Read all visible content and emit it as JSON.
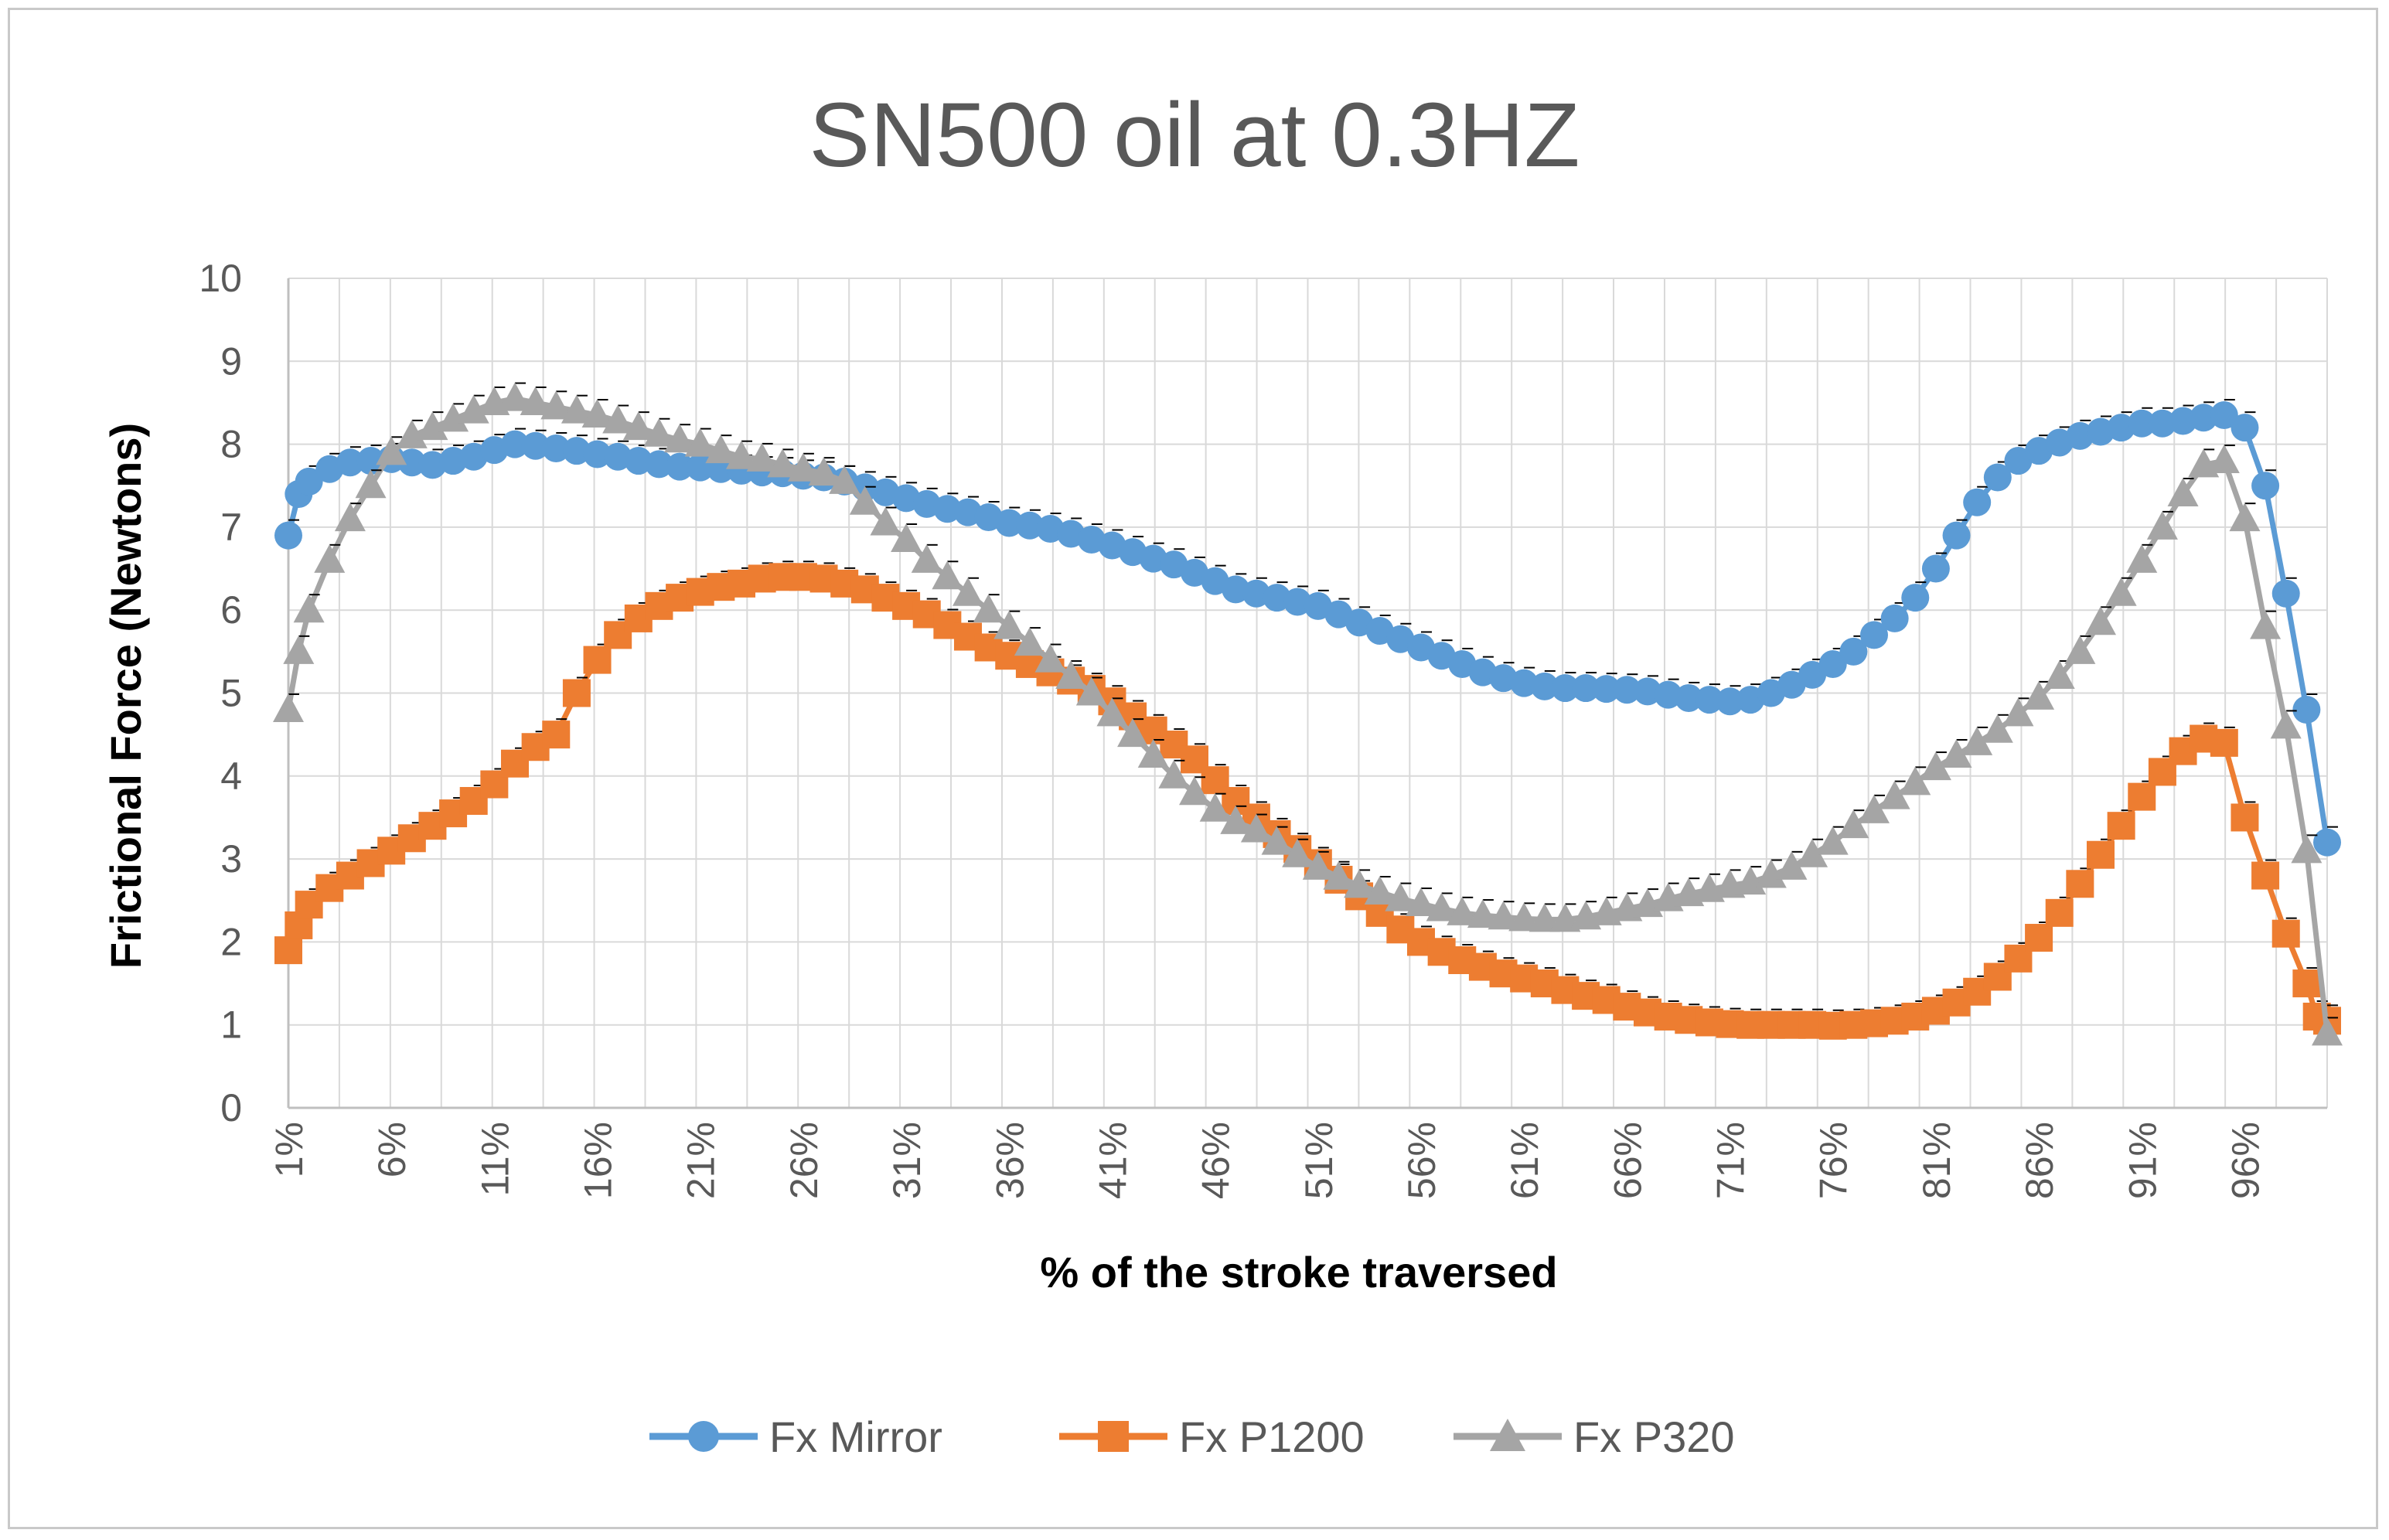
{
  "chart_data": {
    "type": "line",
    "title": "SN500 oil at 0.3HZ",
    "xlabel": "% of the stroke traversed",
    "ylabel": "Frictional Force (Newtons)",
    "ylim": [
      0,
      10
    ],
    "yticks": [
      "0",
      "1",
      "2",
      "3",
      "4",
      "5",
      "6",
      "7",
      "8",
      "9",
      "10"
    ],
    "xlim": [
      1,
      100
    ],
    "xticks": [
      "1%",
      "6%",
      "11%",
      "16%",
      "21%",
      "26%",
      "31%",
      "36%",
      "41%",
      "46%",
      "51%",
      "56%",
      "61%",
      "66%",
      "71%",
      "76%",
      "81%",
      "86%",
      "91%",
      "96%"
    ],
    "grid": true,
    "legend_position": "bottom",
    "series": [
      {
        "name": "Fx Mirror",
        "color": "#5b9bd5",
        "marker": "circle",
        "x": [
          1,
          1.5,
          2,
          3,
          4,
          5,
          6,
          7,
          8,
          9,
          10,
          11,
          12,
          13,
          14,
          15,
          16,
          17,
          18,
          19,
          20,
          21,
          22,
          23,
          24,
          25,
          26,
          27,
          28,
          29,
          30,
          31,
          32,
          33,
          34,
          35,
          36,
          37,
          38,
          39,
          40,
          41,
          42,
          43,
          44,
          45,
          46,
          47,
          48,
          49,
          50,
          51,
          52,
          53,
          54,
          55,
          56,
          57,
          58,
          59,
          60,
          61,
          62,
          63,
          64,
          65,
          66,
          67,
          68,
          69,
          70,
          71,
          72,
          73,
          74,
          75,
          76,
          77,
          78,
          79,
          80,
          81,
          82,
          83,
          84,
          85,
          86,
          87,
          88,
          89,
          90,
          91,
          92,
          93,
          94,
          95,
          96,
          97,
          98,
          99,
          100
        ],
        "values": [
          6.9,
          7.4,
          7.55,
          7.7,
          7.78,
          7.8,
          7.82,
          7.78,
          7.75,
          7.8,
          7.85,
          7.93,
          8.0,
          7.98,
          7.95,
          7.92,
          7.88,
          7.85,
          7.8,
          7.76,
          7.73,
          7.72,
          7.7,
          7.68,
          7.66,
          7.65,
          7.62,
          7.6,
          7.55,
          7.48,
          7.42,
          7.35,
          7.28,
          7.22,
          7.18,
          7.12,
          7.05,
          7.02,
          6.98,
          6.92,
          6.85,
          6.78,
          6.7,
          6.62,
          6.55,
          6.45,
          6.35,
          6.25,
          6.2,
          6.15,
          6.1,
          6.05,
          5.95,
          5.85,
          5.75,
          5.65,
          5.55,
          5.45,
          5.35,
          5.25,
          5.18,
          5.12,
          5.08,
          5.06,
          5.06,
          5.05,
          5.04,
          5.02,
          4.98,
          4.94,
          4.92,
          4.9,
          4.92,
          5.0,
          5.1,
          5.22,
          5.35,
          5.5,
          5.7,
          5.9,
          6.15,
          6.5,
          6.9,
          7.3,
          7.6,
          7.8,
          7.92,
          8.02,
          8.1,
          8.15,
          8.2,
          8.25,
          8.25,
          8.28,
          8.32,
          8.35,
          8.2,
          7.5,
          6.2,
          4.8,
          3.2
        ]
      },
      {
        "name": "Fx P1200",
        "color": "#ed7d31",
        "marker": "square",
        "x": [
          1,
          1.5,
          2,
          3,
          4,
          5,
          6,
          7,
          8,
          9,
          10,
          11,
          12,
          13,
          14,
          15,
          16,
          17,
          18,
          19,
          20,
          21,
          22,
          23,
          24,
          25,
          26,
          27,
          28,
          29,
          30,
          31,
          32,
          33,
          34,
          35,
          36,
          37,
          38,
          39,
          40,
          41,
          42,
          43,
          44,
          45,
          46,
          47,
          48,
          49,
          50,
          51,
          52,
          53,
          54,
          55,
          56,
          57,
          58,
          59,
          60,
          61,
          62,
          63,
          64,
          65,
          66,
          67,
          68,
          69,
          70,
          71,
          72,
          73,
          74,
          75,
          76,
          77,
          78,
          79,
          80,
          81,
          82,
          83,
          84,
          85,
          86,
          87,
          88,
          89,
          90,
          91,
          92,
          93,
          94,
          95,
          96,
          97,
          98,
          99,
          99.5,
          100
        ],
        "values": [
          1.9,
          2.2,
          2.45,
          2.65,
          2.8,
          2.95,
          3.1,
          3.25,
          3.4,
          3.55,
          3.7,
          3.9,
          4.15,
          4.35,
          4.5,
          5.0,
          5.4,
          5.7,
          5.9,
          6.05,
          6.15,
          6.22,
          6.28,
          6.32,
          6.38,
          6.4,
          6.4,
          6.38,
          6.32,
          6.25,
          6.15,
          6.05,
          5.95,
          5.82,
          5.68,
          5.55,
          5.45,
          5.35,
          5.25,
          5.15,
          5.05,
          4.9,
          4.72,
          4.55,
          4.38,
          4.2,
          3.95,
          3.7,
          3.5,
          3.3,
          3.12,
          2.95,
          2.75,
          2.55,
          2.35,
          2.15,
          2.0,
          1.88,
          1.78,
          1.7,
          1.62,
          1.56,
          1.5,
          1.42,
          1.35,
          1.3,
          1.22,
          1.15,
          1.1,
          1.06,
          1.03,
          1.01,
          1.0,
          1.0,
          1.0,
          1.0,
          0.99,
          1.0,
          1.02,
          1.05,
          1.1,
          1.17,
          1.27,
          1.4,
          1.58,
          1.8,
          2.05,
          2.35,
          2.7,
          3.05,
          3.4,
          3.75,
          4.05,
          4.3,
          4.45,
          4.4,
          3.5,
          2.8,
          2.1,
          1.5,
          1.1,
          1.05
        ]
      },
      {
        "name": "Fx P320",
        "color": "#a5a5a5",
        "marker": "triangle",
        "x": [
          1,
          1.5,
          2,
          3,
          4,
          5,
          6,
          7,
          8,
          9,
          10,
          11,
          12,
          13,
          14,
          15,
          16,
          17,
          18,
          19,
          20,
          21,
          22,
          23,
          24,
          25,
          26,
          27,
          28,
          29,
          30,
          31,
          32,
          33,
          34,
          35,
          36,
          37,
          38,
          39,
          40,
          41,
          42,
          43,
          44,
          45,
          46,
          47,
          48,
          49,
          50,
          51,
          52,
          53,
          54,
          55,
          56,
          57,
          58,
          59,
          60,
          61,
          62,
          63,
          64,
          65,
          66,
          67,
          68,
          69,
          70,
          71,
          72,
          73,
          74,
          75,
          76,
          77,
          78,
          79,
          80,
          81,
          82,
          83,
          84,
          85,
          86,
          87,
          88,
          89,
          90,
          91,
          92,
          93,
          94,
          95,
          96,
          97,
          98,
          99,
          100
        ],
        "values": [
          4.8,
          5.5,
          6.0,
          6.6,
          7.1,
          7.5,
          7.9,
          8.1,
          8.2,
          8.3,
          8.4,
          8.5,
          8.55,
          8.5,
          8.45,
          8.4,
          8.35,
          8.28,
          8.2,
          8.12,
          8.05,
          8.0,
          7.92,
          7.85,
          7.82,
          7.75,
          7.7,
          7.65,
          7.55,
          7.3,
          7.05,
          6.85,
          6.6,
          6.4,
          6.2,
          6.0,
          5.8,
          5.6,
          5.4,
          5.2,
          5.0,
          4.75,
          4.5,
          4.25,
          4.0,
          3.8,
          3.6,
          3.45,
          3.35,
          3.2,
          3.05,
          2.9,
          2.78,
          2.68,
          2.6,
          2.52,
          2.46,
          2.4,
          2.35,
          2.32,
          2.3,
          2.28,
          2.27,
          2.27,
          2.3,
          2.35,
          2.4,
          2.45,
          2.52,
          2.58,
          2.63,
          2.68,
          2.72,
          2.8,
          2.9,
          3.05,
          3.2,
          3.4,
          3.58,
          3.75,
          3.92,
          4.1,
          4.25,
          4.4,
          4.55,
          4.75,
          4.95,
          5.2,
          5.5,
          5.85,
          6.2,
          6.6,
          7.0,
          7.4,
          7.75,
          7.8,
          7.1,
          5.8,
          4.6,
          3.1,
          0.9
        ]
      }
    ]
  }
}
